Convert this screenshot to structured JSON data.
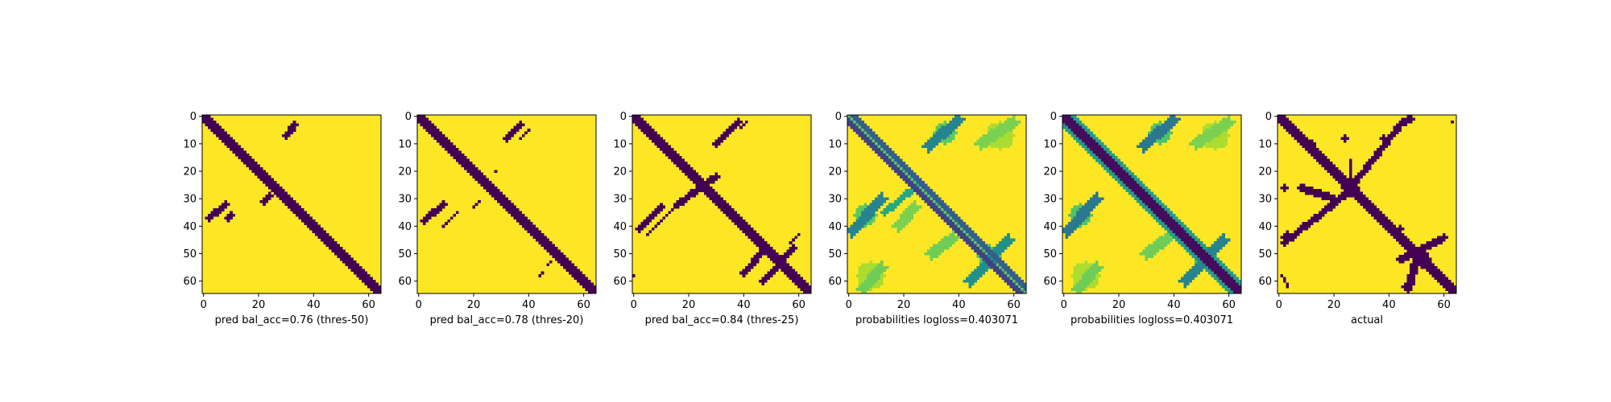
{
  "chart_data": [
    {
      "type": "heatmap",
      "variant": "binary",
      "xlabel": "pred bal_acc=0.76 (thres-50)",
      "size": 65,
      "x_ticks": [
        0,
        20,
        40,
        60
      ],
      "y_ticks": [
        0,
        10,
        20,
        30,
        40,
        50,
        60
      ],
      "colormap": "viridis",
      "features": {
        "diag": [
          {
            "o": 0,
            "w": 2
          }
        ],
        "streaks": [
          {
            "x0": 30,
            "y0": 7,
            "x1": 33,
            "y1": 3,
            "w": 1
          },
          {
            "x0": 2,
            "y0": 37,
            "x1": 8,
            "y1": 32,
            "w": 1
          },
          {
            "x0": 9,
            "y0": 37,
            "x1": 10,
            "y1": 36,
            "w": 1
          },
          {
            "x0": 22,
            "y0": 31,
            "x1": 24,
            "y1": 29,
            "w": 1
          },
          {
            "x0": 54,
            "y0": 53,
            "x1": 55,
            "y1": 53,
            "w": 0
          }
        ],
        "blobs": []
      }
    },
    {
      "type": "heatmap",
      "variant": "binary",
      "xlabel": "pred bal_acc=0.78 (thres-20)",
      "size": 65,
      "x_ticks": [
        0,
        20,
        40,
        60
      ],
      "y_ticks": [
        0,
        10,
        20,
        30,
        40,
        50,
        60
      ],
      "colormap": "viridis",
      "features": {
        "diag": [
          {
            "o": 0,
            "w": 2
          }
        ],
        "streaks": [
          {
            "x0": 32,
            "y0": 8,
            "x1": 37,
            "y1": 3,
            "w": 1
          },
          {
            "x0": 37,
            "y0": 8,
            "x1": 40,
            "y1": 5,
            "w": 0
          },
          {
            "x0": 2,
            "y0": 38,
            "x1": 9,
            "y1": 32,
            "w": 1
          },
          {
            "x0": 9,
            "y0": 40,
            "x1": 14,
            "y1": 35,
            "w": 0
          },
          {
            "x0": 20,
            "y0": 33,
            "x1": 22,
            "y1": 31,
            "w": 0
          },
          {
            "x0": 28,
            "y0": 20,
            "x1": 28,
            "y1": 20,
            "w": 0
          },
          {
            "x0": 47,
            "y0": 54,
            "x1": 48,
            "y1": 53,
            "w": 0
          },
          {
            "x0": 44,
            "y0": 58,
            "x1": 45,
            "y1": 57,
            "w": 0
          }
        ],
        "blobs": []
      }
    },
    {
      "type": "heatmap",
      "variant": "binary",
      "xlabel": "pred bal_acc=0.84 (thres-25)",
      "size": 65,
      "x_ticks": [
        0,
        20,
        40,
        60
      ],
      "y_ticks": [
        0,
        10,
        20,
        30,
        40,
        50,
        60
      ],
      "colormap": "viridis",
      "features": {
        "diag": [
          {
            "o": 0,
            "w": 2
          }
        ],
        "streaks": [
          {
            "x0": 30,
            "y0": 10,
            "x1": 38,
            "y1": 2,
            "w": 1
          },
          {
            "x0": 39,
            "y0": 4,
            "x1": 41,
            "y1": 2,
            "w": 0
          },
          {
            "x0": 2,
            "y0": 41,
            "x1": 10,
            "y1": 33,
            "w": 1
          },
          {
            "x0": 5,
            "y0": 43,
            "x1": 16,
            "y1": 32,
            "w": 0
          },
          {
            "x0": 16,
            "y0": 32,
            "x1": 30,
            "y1": 22,
            "w": 1
          },
          {
            "x0": 40,
            "y0": 57,
            "x1": 48,
            "y1": 48,
            "w": 1
          },
          {
            "x0": 47,
            "y0": 60,
            "x1": 58,
            "y1": 48,
            "w": 1
          },
          {
            "x0": 57,
            "y0": 46,
            "x1": 60,
            "y1": 43,
            "w": 0
          },
          {
            "x0": 0,
            "y0": 58,
            "x1": 0,
            "y1": 58,
            "w": 0
          }
        ],
        "blobs": [
          {
            "x": 26,
            "y": 26,
            "r": 2
          }
        ]
      }
    },
    {
      "type": "heatmap",
      "variant": "continuous",
      "xlabel": "probabilities logloss=0.403071",
      "size": 65,
      "x_ticks": [
        0,
        20,
        40,
        60
      ],
      "y_ticks": [
        0,
        10,
        20,
        30,
        40,
        50,
        60
      ],
      "colormap": "viridis",
      "features": {
        "diag": [
          {
            "o": 2,
            "w": 1,
            "v": 0.2
          },
          {
            "o": -2,
            "w": 1,
            "v": 0.3
          },
          {
            "o": 0,
            "w": 1,
            "v": 0.75
          }
        ],
        "streaks": [
          {
            "x0": 29,
            "y0": 11,
            "x1": 40,
            "y1": 1,
            "w": 2,
            "v": 0.45
          },
          {
            "x0": 1,
            "y0": 42,
            "x1": 12,
            "y1": 30,
            "w": 2,
            "v": 0.45
          },
          {
            "x0": 44,
            "y0": 60,
            "x1": 58,
            "y1": 45,
            "w": 2,
            "v": 0.5
          },
          {
            "x0": 13,
            "y0": 35,
            "x1": 25,
            "y1": 25,
            "w": 1,
            "v": 0.6
          },
          {
            "x0": 48,
            "y0": 10,
            "x1": 60,
            "y1": 2,
            "w": 2,
            "v": 0.8
          },
          {
            "x0": 5,
            "y0": 63,
            "x1": 12,
            "y1": 55,
            "w": 2,
            "v": 0.78
          },
          {
            "x0": 30,
            "y0": 50,
            "x1": 38,
            "y1": 44,
            "w": 2,
            "v": 0.78
          },
          {
            "x0": 18,
            "y0": 40,
            "x1": 24,
            "y1": 33,
            "w": 2,
            "v": 0.8
          }
        ],
        "blobs": [
          {
            "x": 35,
            "y": 6,
            "r": 4,
            "v": 0.75
          },
          {
            "x": 6,
            "y": 36,
            "r": 4,
            "v": 0.75
          },
          {
            "x": 51,
            "y": 51,
            "r": 4,
            "v": 0.72
          },
          {
            "x": 55,
            "y": 7,
            "r": 5,
            "v": 0.88
          },
          {
            "x": 8,
            "y": 58,
            "r": 5,
            "v": 0.88
          }
        ]
      }
    },
    {
      "type": "heatmap",
      "variant": "continuous",
      "xlabel": "probabilities logloss=0.403071",
      "size": 65,
      "x_ticks": [
        0,
        20,
        40,
        60
      ],
      "y_ticks": [
        0,
        10,
        20,
        30,
        40,
        50,
        60
      ],
      "colormap": "viridis",
      "features": {
        "diag": [
          {
            "o": 0,
            "w": 2,
            "v": 0.03
          },
          {
            "o": 3,
            "w": 1,
            "v": 0.55
          },
          {
            "o": -3,
            "w": 1,
            "v": 0.55
          }
        ],
        "streaks": [
          {
            "x0": 29,
            "y0": 11,
            "x1": 40,
            "y1": 1,
            "w": 2,
            "v": 0.4
          },
          {
            "x0": 1,
            "y0": 42,
            "x1": 12,
            "y1": 30,
            "w": 2,
            "v": 0.4
          },
          {
            "x0": 44,
            "y0": 60,
            "x1": 58,
            "y1": 45,
            "w": 2,
            "v": 0.45
          },
          {
            "x0": 48,
            "y0": 10,
            "x1": 60,
            "y1": 2,
            "w": 2,
            "v": 0.8
          },
          {
            "x0": 5,
            "y0": 63,
            "x1": 12,
            "y1": 55,
            "w": 2,
            "v": 0.78
          },
          {
            "x0": 30,
            "y0": 50,
            "x1": 38,
            "y1": 44,
            "w": 2,
            "v": 0.78
          }
        ],
        "blobs": [
          {
            "x": 35,
            "y": 6,
            "r": 4,
            "v": 0.72
          },
          {
            "x": 6,
            "y": 36,
            "r": 4,
            "v": 0.72
          },
          {
            "x": 51,
            "y": 51,
            "r": 4,
            "v": 0.7
          },
          {
            "x": 55,
            "y": 7,
            "r": 5,
            "v": 0.88
          },
          {
            "x": 8,
            "y": 58,
            "r": 5,
            "v": 0.88
          }
        ]
      }
    },
    {
      "type": "heatmap",
      "variant": "binary",
      "xlabel": "actual",
      "size": 65,
      "x_ticks": [
        0,
        20,
        40,
        60
      ],
      "y_ticks": [
        0,
        10,
        20,
        30,
        40,
        50,
        60
      ],
      "colormap": "viridis",
      "features": {
        "diag": [
          {
            "o": 0,
            "w": 2
          }
        ],
        "streaks": [
          {
            "x0": 26,
            "y0": 26,
            "x1": 45,
            "y1": 2,
            "w": 1
          },
          {
            "x0": 45,
            "y0": 2,
            "x1": 48,
            "y1": 1,
            "w": 1
          },
          {
            "x0": 2,
            "y0": 46,
            "x1": 26,
            "y1": 27,
            "w": 1
          },
          {
            "x0": 8,
            "y0": 26,
            "x1": 20,
            "y1": 30,
            "w": 1
          },
          {
            "x0": 26,
            "y0": 26,
            "x1": 26,
            "y1": 16,
            "w": 0
          },
          {
            "x0": 44,
            "y0": 52,
            "x1": 60,
            "y1": 44,
            "w": 1
          },
          {
            "x0": 50,
            "y0": 51,
            "x1": 47,
            "y1": 63,
            "w": 1
          },
          {
            "x0": 1,
            "y0": 58,
            "x1": 3,
            "y1": 62,
            "w": 0
          }
        ],
        "blobs": [
          {
            "x": 26,
            "y": 26,
            "r": 3
          },
          {
            "x": 52,
            "y": 52,
            "r": 3
          },
          {
            "x": 3,
            "y": 44,
            "r": 2
          },
          {
            "x": 2,
            "y": 26,
            "r": 1
          },
          {
            "x": 12,
            "y": 10,
            "r": 1
          },
          {
            "x": 24,
            "y": 8,
            "r": 1
          },
          {
            "x": 38,
            "y": 8,
            "r": 1
          },
          {
            "x": 63,
            "y": 2,
            "r": 0
          },
          {
            "x": 44,
            "y": 41,
            "r": 1
          },
          {
            "x": 46,
            "y": 62,
            "r": 1
          }
        ]
      }
    }
  ]
}
